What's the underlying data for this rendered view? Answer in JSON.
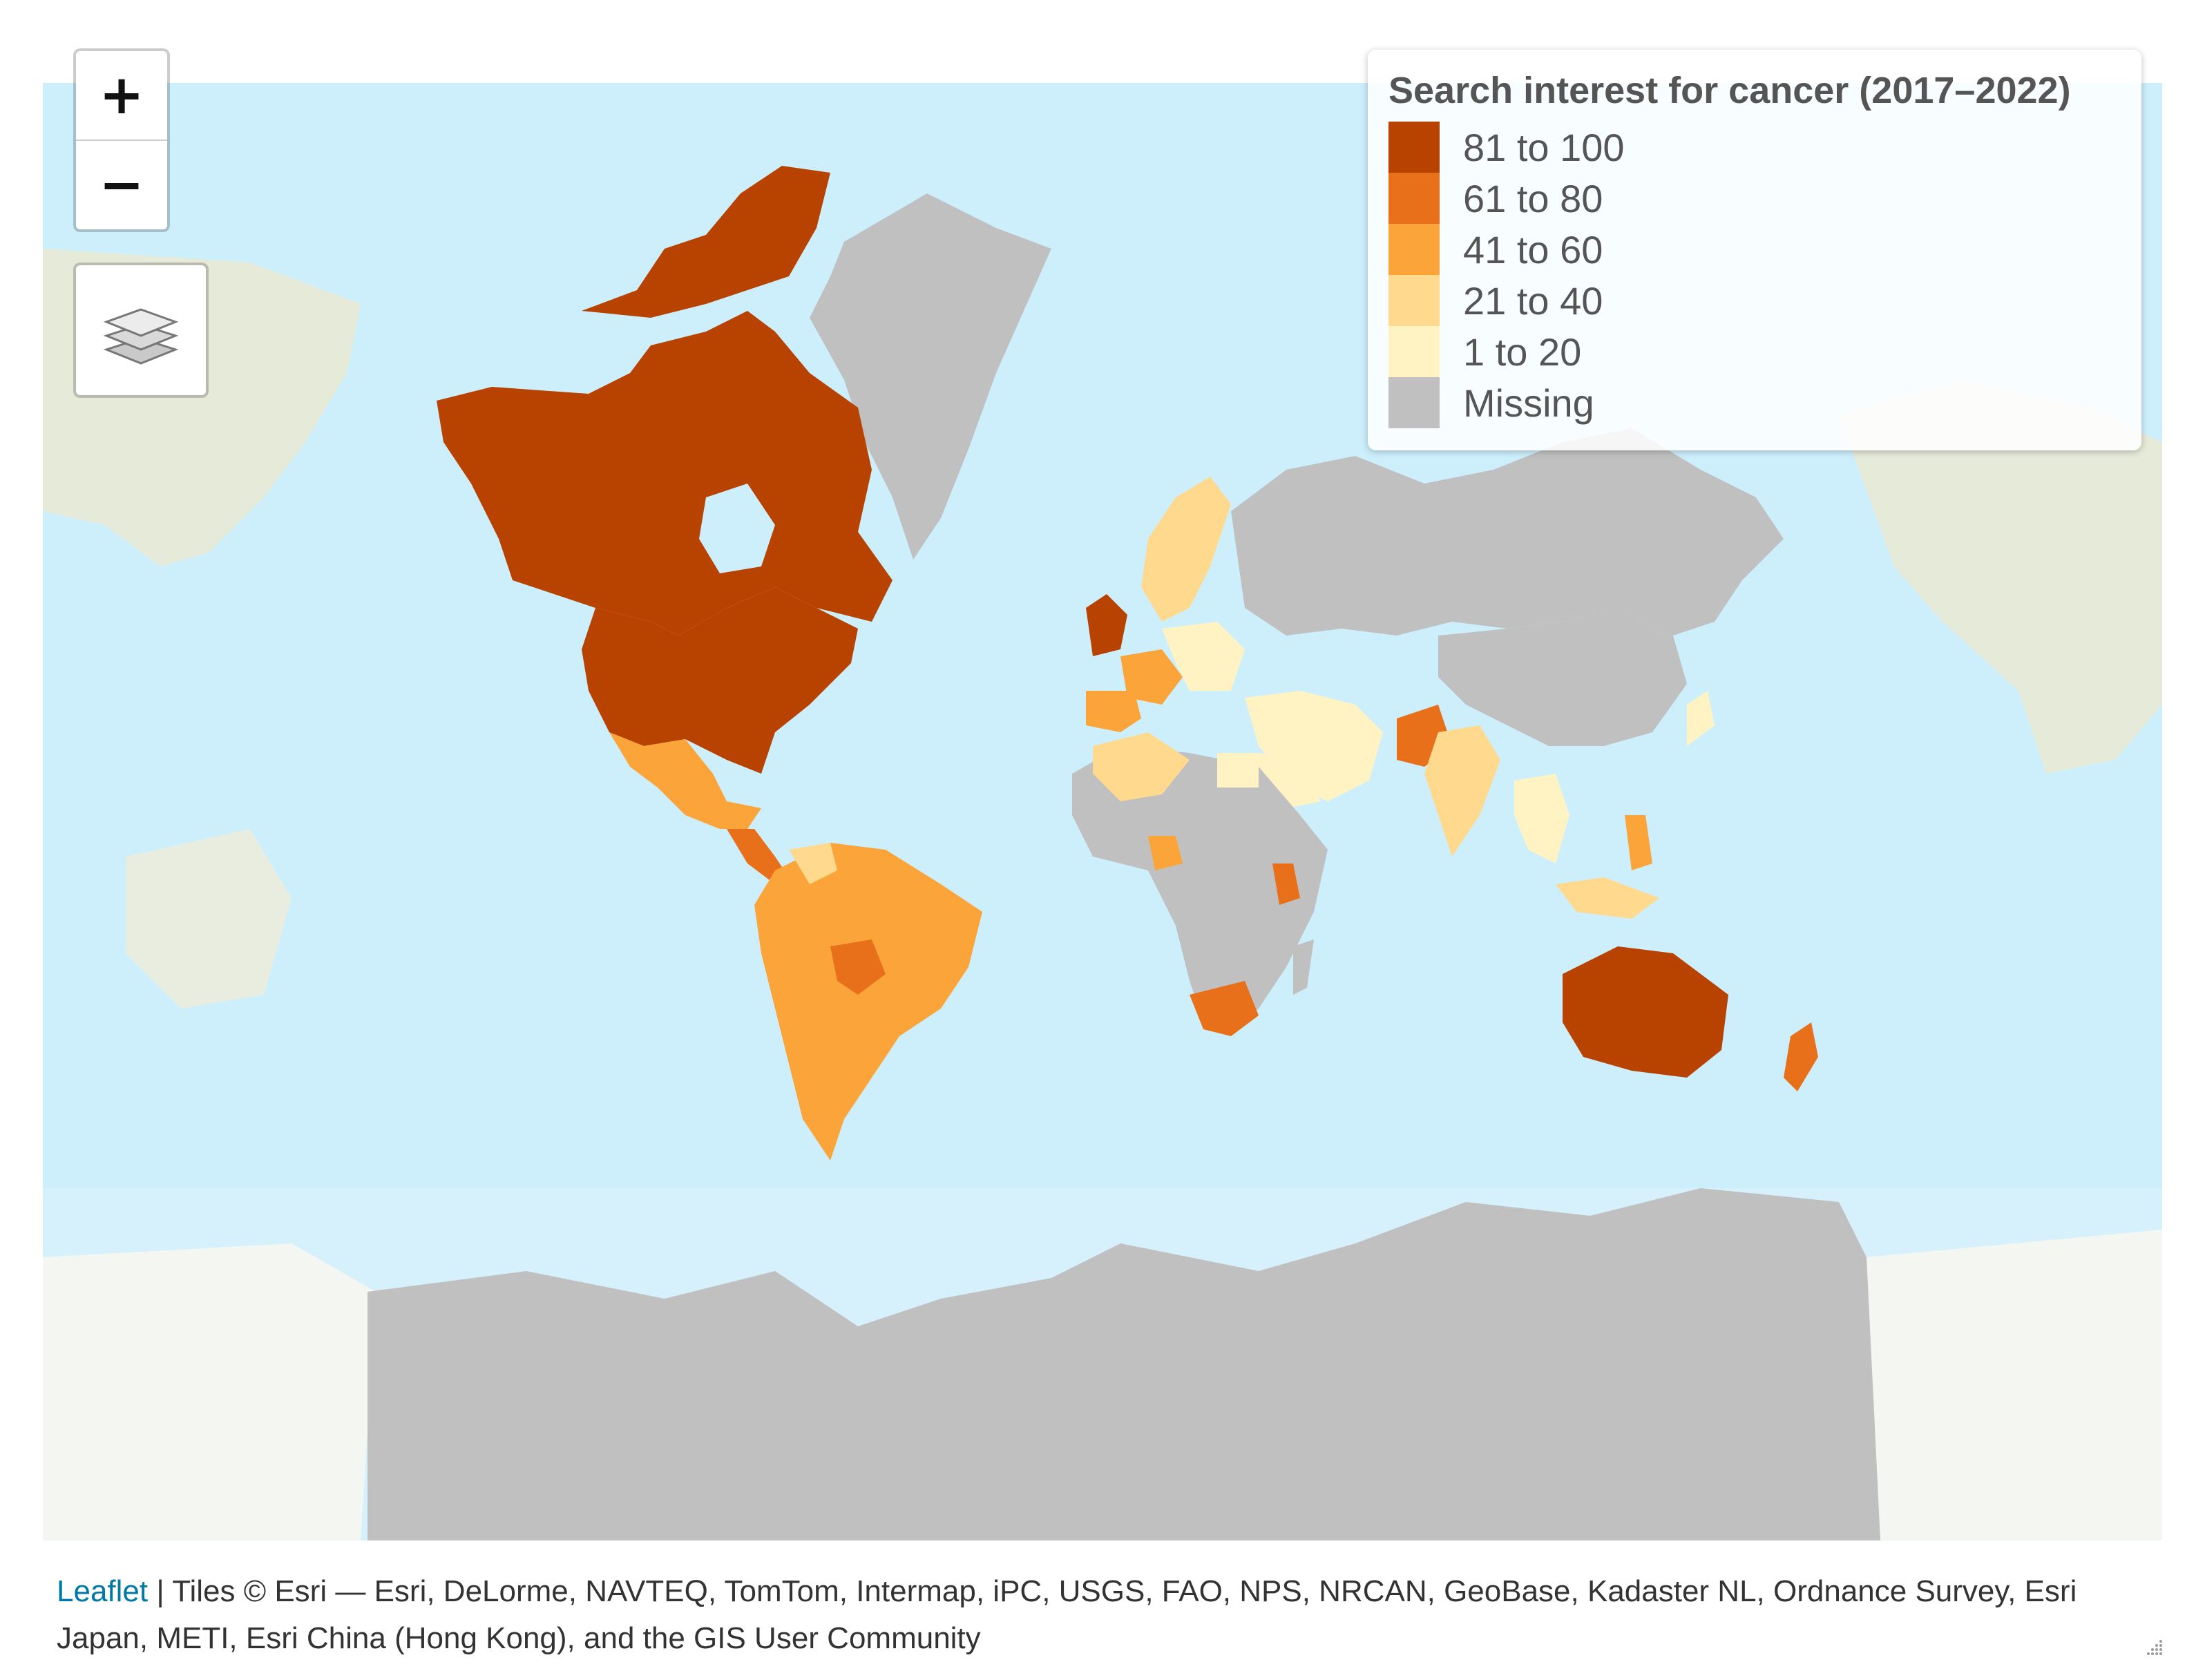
{
  "zoom": {
    "in_label": "+",
    "out_label": "−"
  },
  "legend": {
    "title": "Search interest for cancer (2017–2022)",
    "bins": [
      {
        "label": "81 to 100",
        "color": "#b84200"
      },
      {
        "label": "61 to 80",
        "color": "#e8701a"
      },
      {
        "label": "41 to 60",
        "color": "#fba43a"
      },
      {
        "label": "21 to 40",
        "color": "#fed98e"
      },
      {
        "label": "1 to 20",
        "color": "#fff3c4"
      },
      {
        "label": "Missing",
        "color": "#c0c0c0"
      }
    ]
  },
  "attribution": {
    "leaflet_link": "Leaflet",
    "separator": " | ",
    "tiles_text": "Tiles © Esri — Esri, DeLorme, NAVTEQ, TomTom, Intermap, iPC, USGS, FAO, NPS, NRCAN, GeoBase, Kadaster NL, Ordnance Survey, Esri Japan, METI, Esri China (Hong Kong), and the GIS User Community"
  },
  "icons": {
    "layers": "layers-icon",
    "resize": "resize-handle-icon"
  }
}
